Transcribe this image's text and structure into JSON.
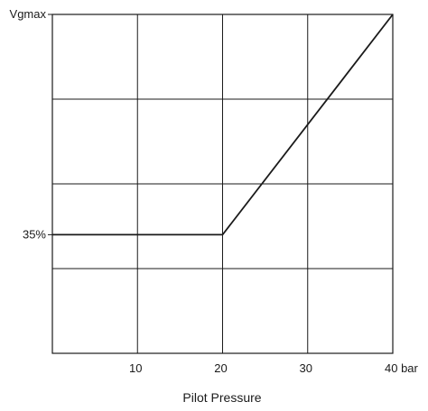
{
  "chart_data": {
    "type": "line",
    "xlabel": "Pilot Pressure",
    "x_unit": "bar",
    "ylabel": "",
    "xlim": [
      0,
      40
    ],
    "ylim": [
      0,
      100
    ],
    "y_unit": "%",
    "grid": true,
    "x_ticks": [
      {
        "value": 10,
        "label": "10"
      },
      {
        "value": 20,
        "label": "20"
      },
      {
        "value": 30,
        "label": "30"
      },
      {
        "value": 40,
        "label": "40 bar"
      }
    ],
    "x_gridlines": [
      10,
      20,
      30
    ],
    "y_ticks": [
      {
        "value": 35,
        "label": "35%"
      },
      {
        "value": 100,
        "label": "Vgmax"
      }
    ],
    "y_gridlines": [
      25,
      50,
      75
    ],
    "series": [
      {
        "color": "#1a1a1a",
        "points": [
          {
            "x": 0,
            "y": 35
          },
          {
            "x": 20,
            "y": 35
          },
          {
            "x": 40,
            "y": 100
          }
        ]
      }
    ]
  }
}
